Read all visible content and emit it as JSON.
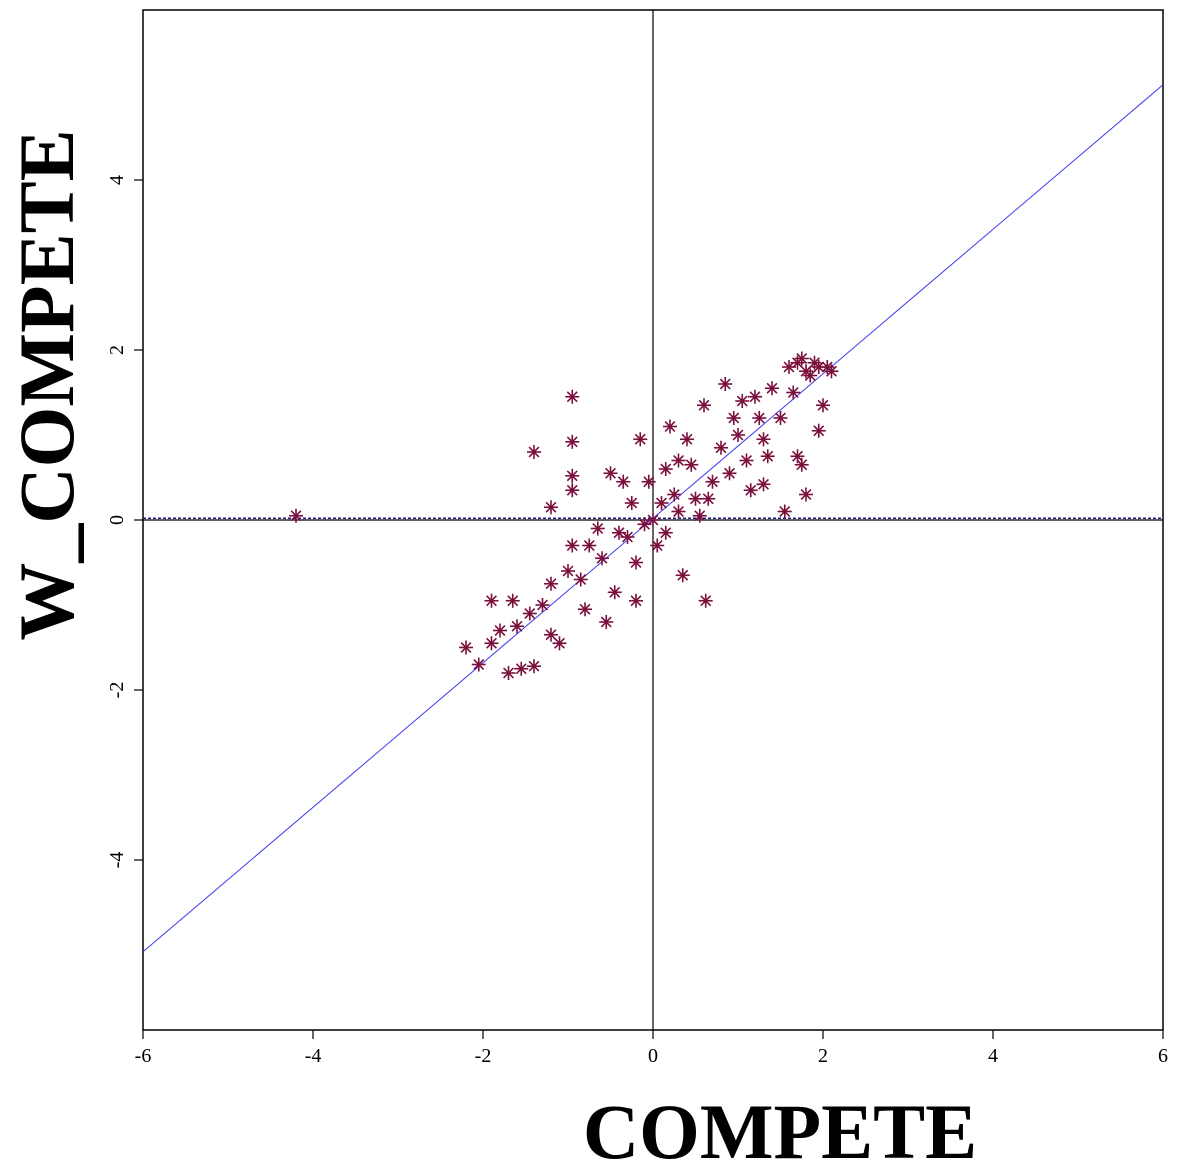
{
  "chart_data": {
    "type": "scatter",
    "xlabel": "COMPETE",
    "ylabel": "W_COMPETE",
    "xlim": [
      -6,
      6
    ],
    "ylim": [
      -6,
      6
    ],
    "x_ticks": [
      -6,
      -4,
      -2,
      0,
      2,
      4,
      6
    ],
    "y_ticks": [
      -4,
      -2,
      0,
      2,
      4
    ],
    "x_tick_labels": [
      "-6",
      "-4",
      "-2",
      "0",
      "2",
      "4",
      "6"
    ],
    "y_tick_labels": [
      "-4",
      "-2",
      "0",
      "2",
      "4"
    ],
    "grid": false,
    "reference_lines": {
      "x0": 0,
      "y0": 0
    },
    "mean_line_y": 0.02,
    "regression_line": {
      "slope": 0.85,
      "intercept": 0.02
    },
    "colors": {
      "points": "#7a0f3c",
      "regression": "#3a3af0",
      "mean_line": "#1a1a80",
      "axes": "#000000"
    },
    "marker": "asterisk",
    "series": [
      {
        "points": [
          [
            -4.2,
            0.05
          ],
          [
            -0.95,
            1.45
          ],
          [
            -0.95,
            0.92
          ],
          [
            -0.95,
            0.52
          ],
          [
            -0.95,
            0.35
          ],
          [
            -1.4,
            0.8
          ],
          [
            -1.2,
            0.15
          ],
          [
            -0.5,
            0.55
          ],
          [
            -0.35,
            0.45
          ],
          [
            -0.15,
            0.95
          ],
          [
            0.2,
            1.1
          ],
          [
            0.4,
            0.95
          ],
          [
            0.6,
            1.35
          ],
          [
            0.85,
            1.6
          ],
          [
            1.05,
            1.4
          ],
          [
            1.25,
            1.2
          ],
          [
            1.35,
            0.75
          ],
          [
            1.3,
            0.42
          ],
          [
            1.55,
            0.1
          ],
          [
            1.8,
            0.3
          ],
          [
            1.95,
            1.05
          ],
          [
            1.75,
            0.65
          ],
          [
            1.7,
            0.75
          ],
          [
            2.0,
            1.35
          ],
          [
            0.35,
            -0.65
          ],
          [
            0.62,
            -0.95
          ],
          [
            -0.2,
            -0.95
          ],
          [
            -0.55,
            -1.2
          ],
          [
            -1.1,
            -1.45
          ],
          [
            -2.2,
            -1.5
          ],
          [
            -2.05,
            -1.7
          ],
          [
            -1.7,
            -1.8
          ],
          [
            -1.55,
            -1.75
          ],
          [
            -1.4,
            -1.72
          ],
          [
            -1.2,
            -1.35
          ],
          [
            -0.8,
            -1.05
          ],
          [
            -0.45,
            -0.85
          ],
          [
            -0.2,
            -0.5
          ],
          [
            0.05,
            -0.3
          ],
          [
            0.15,
            -0.15
          ],
          [
            0.3,
            0.1
          ],
          [
            0.5,
            0.25
          ],
          [
            0.7,
            0.45
          ],
          [
            0.9,
            0.55
          ],
          [
            1.1,
            0.7
          ],
          [
            1.3,
            0.95
          ],
          [
            1.5,
            1.2
          ],
          [
            1.65,
            1.5
          ],
          [
            1.8,
            1.75
          ],
          [
            1.9,
            1.85
          ],
          [
            2.05,
            1.8
          ],
          [
            1.75,
            1.9
          ],
          [
            1.85,
            1.7
          ],
          [
            1.95,
            1.8
          ],
          [
            1.6,
            1.8
          ],
          [
            1.7,
            1.85
          ],
          [
            2.1,
            1.75
          ],
          [
            -0.6,
            -0.45
          ],
          [
            -0.3,
            -0.2
          ],
          [
            0.0,
            0.0
          ],
          [
            0.1,
            0.2
          ],
          [
            -0.1,
            -0.05
          ],
          [
            0.25,
            0.3
          ],
          [
            -0.85,
            -0.7
          ],
          [
            -1.0,
            -0.6
          ],
          [
            -0.75,
            -0.3
          ],
          [
            -1.3,
            -1.0
          ],
          [
            -1.6,
            -1.25
          ],
          [
            -1.8,
            -1.3
          ],
          [
            -1.9,
            -1.45
          ],
          [
            -1.45,
            -1.1
          ],
          [
            -0.4,
            -0.15
          ],
          [
            -0.05,
            0.45
          ],
          [
            0.45,
            0.65
          ],
          [
            0.65,
            0.25
          ],
          [
            0.8,
            0.85
          ],
          [
            1.0,
            1.0
          ],
          [
            1.15,
            0.35
          ],
          [
            0.55,
            0.05
          ],
          [
            -0.25,
            0.2
          ],
          [
            -0.65,
            -0.1
          ],
          [
            0.15,
            0.6
          ],
          [
            -1.65,
            -0.95
          ],
          [
            -1.9,
            -0.95
          ],
          [
            -1.2,
            -0.75
          ],
          [
            -0.95,
            -0.3
          ],
          [
            1.2,
            1.45
          ],
          [
            1.4,
            1.55
          ],
          [
            0.95,
            1.2
          ],
          [
            0.3,
            0.7
          ]
        ]
      }
    ]
  }
}
